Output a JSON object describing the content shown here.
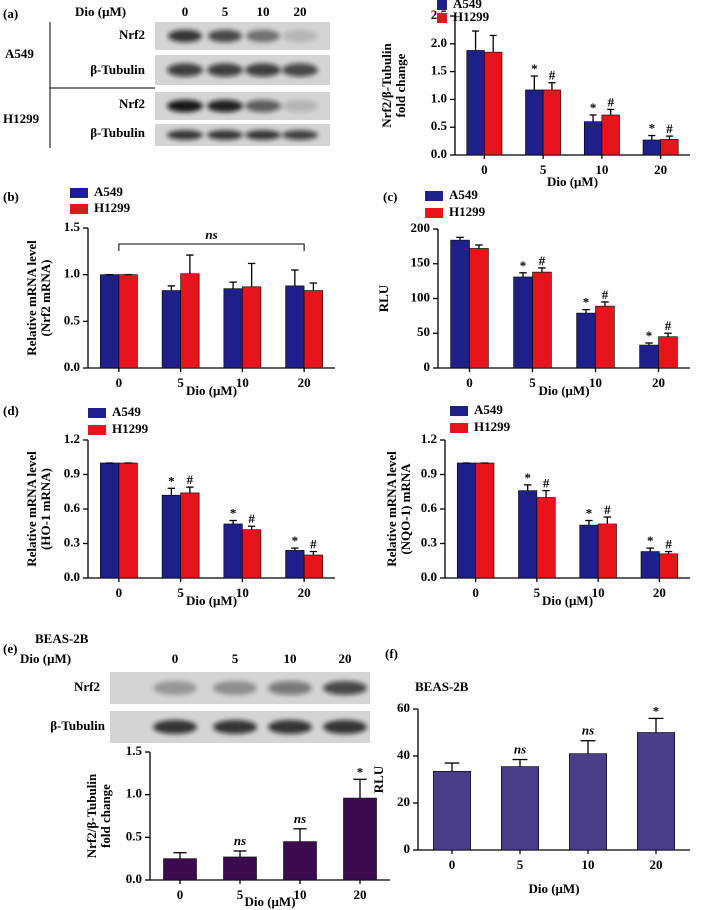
{
  "panel_labels": [
    "(a)",
    "(b)",
    "(c)",
    "(d)",
    "(e)",
    "(f)"
  ],
  "blot_a": {
    "header_label": "Dio (μM)",
    "lanes": [
      "0",
      "5",
      "10",
      "20"
    ],
    "groups": [
      {
        "name": "A549",
        "rows": [
          "Nrf2",
          "β-Tubulin"
        ]
      },
      {
        "name": "H1299",
        "rows": [
          "Nrf2",
          "β-Tubulin"
        ]
      }
    ]
  },
  "blot_e": {
    "title": "BEAS-2B",
    "header_label": "Dio (μM)",
    "lanes": [
      "0",
      "5",
      "10",
      "20"
    ],
    "rows": [
      "Nrf2",
      "β-Tubulin"
    ]
  },
  "chart_data": [
    {
      "type": "bar",
      "ylabel": [
        "Nrf2/β-Tubulin",
        "fold change"
      ],
      "xlabel": "Dio (μM)",
      "categories": [
        "0",
        "5",
        "10",
        "20"
      ],
      "ylim": [
        0,
        2.5
      ],
      "yticks": [
        {
          "value": 0,
          "label": "0.0"
        },
        0.5,
        {
          "value": 1,
          "label": "1.0"
        },
        1.5,
        {
          "value": 2,
          "label": "2.0"
        },
        2.5
      ],
      "series": [
        {
          "name": "A549",
          "color": "#1f1f8a",
          "values": [
            1.88,
            1.17,
            0.6,
            0.27
          ],
          "errors": [
            0.35,
            0.25,
            0.12,
            0.08
          ],
          "marks": [
            null,
            "*",
            "*",
            "*"
          ]
        },
        {
          "name": "H1299",
          "color": "#e8141b",
          "values": [
            1.85,
            1.17,
            0.72,
            0.28
          ],
          "errors": [
            0.3,
            0.13,
            0.1,
            0.06
          ],
          "marks": [
            null,
            "#",
            "#",
            "#"
          ]
        }
      ]
    },
    {
      "type": "bar",
      "ylabel": [
        "Relative mRNA level",
        "(Nrf2 mRNA)"
      ],
      "xlabel": "Dio (μM)",
      "categories": [
        "0",
        "5",
        "10",
        "20"
      ],
      "ylim": [
        0,
        1.5
      ],
      "yticks": [
        {
          "value": 0,
          "label": "0.0"
        },
        0.5,
        {
          "value": 1,
          "label": "1.0"
        },
        1.5
      ],
      "bracket": {
        "label": "ns",
        "from": "0",
        "to": "20"
      },
      "series": [
        {
          "name": "A549",
          "color": "#1f1f8a",
          "values": [
            1,
            0.83,
            0.85,
            0.88
          ],
          "errors": [
            0,
            0.05,
            0.07,
            0.17
          ]
        },
        {
          "name": "H1299",
          "color": "#e8141b",
          "values": [
            1,
            1.01,
            0.87,
            0.83
          ],
          "errors": [
            0,
            0.2,
            0.25,
            0.08
          ]
        }
      ]
    },
    {
      "type": "bar",
      "ylabel": [
        "RLU"
      ],
      "xlabel": "Dio (μM)",
      "categories": [
        "0",
        "5",
        "10",
        "20"
      ],
      "ylim": [
        0,
        200
      ],
      "yticks": [
        0,
        50,
        100,
        150,
        200
      ],
      "series": [
        {
          "name": "A549",
          "color": "#1f1f8a",
          "values": [
            184,
            131,
            79,
            33
          ],
          "errors": [
            4,
            6,
            5,
            3
          ],
          "marks": [
            null,
            "*",
            "*",
            "*"
          ]
        },
        {
          "name": "H1299",
          "color": "#e8141b",
          "values": [
            172,
            138,
            89,
            45
          ],
          "errors": [
            5,
            6,
            6,
            5
          ],
          "marks": [
            null,
            "#",
            "#",
            "#"
          ]
        }
      ]
    },
    {
      "type": "bar",
      "ylabel": [
        "Relative mRNA level",
        "(HO-1 mRNA)"
      ],
      "xlabel": "Dio (μM)",
      "categories": [
        "0",
        "5",
        "10",
        "20"
      ],
      "ylim": [
        0,
        1.2
      ],
      "yticks": [
        {
          "value": 0,
          "label": "0.0"
        },
        0.3,
        0.6,
        0.9,
        1.2
      ],
      "series": [
        {
          "name": "A549",
          "color": "#1f1f8a",
          "values": [
            1,
            0.72,
            0.47,
            0.24
          ],
          "errors": [
            0,
            0.06,
            0.03,
            0.02
          ],
          "marks": [
            null,
            "*",
            "*",
            "*"
          ]
        },
        {
          "name": "H1299",
          "color": "#e8141b",
          "values": [
            1,
            0.74,
            0.42,
            0.2
          ],
          "errors": [
            0,
            0.05,
            0.03,
            0.03
          ],
          "marks": [
            null,
            "#",
            "#",
            "#"
          ]
        }
      ]
    },
    {
      "type": "bar",
      "ylabel": [
        "Relative mRNA level",
        "(NQO-1) mRNA"
      ],
      "xlabel": "Dio (μM)",
      "categories": [
        "0",
        "5",
        "10",
        "20"
      ],
      "ylim": [
        0,
        1.2
      ],
      "yticks": [
        {
          "value": 0,
          "label": "0.0"
        },
        0.3,
        0.6,
        0.9,
        1.2
      ],
      "series": [
        {
          "name": "A549",
          "color": "#1f1f8a",
          "values": [
            1,
            0.76,
            0.46,
            0.23
          ],
          "errors": [
            0,
            0.05,
            0.04,
            0.03
          ],
          "marks": [
            null,
            "*",
            "*",
            "*"
          ]
        },
        {
          "name": "H1299",
          "color": "#e8141b",
          "values": [
            1,
            0.7,
            0.47,
            0.21
          ],
          "errors": [
            0,
            0.06,
            0.06,
            0.02
          ],
          "marks": [
            null,
            "#",
            "#",
            "#"
          ]
        }
      ]
    },
    {
      "type": "bar",
      "ylabel": [
        "Nrf2/β-Tubulin",
        "fold change"
      ],
      "xlabel": "Dio (μM)",
      "categories": [
        "0",
        "5",
        "10",
        "20"
      ],
      "ylim": [
        0,
        1.5
      ],
      "yticks": [
        {
          "value": 0,
          "label": "0.0"
        },
        0.5,
        {
          "value": 1,
          "label": "1.0"
        },
        1.5
      ],
      "color": "#3b0a4f",
      "values": [
        0.25,
        0.27,
        0.45,
        0.96
      ],
      "errors": [
        0.07,
        0.07,
        0.15,
        0.22
      ],
      "marks": [
        null,
        "ns",
        "ns",
        "*"
      ]
    },
    {
      "type": "bar",
      "title": "BEAS-2B",
      "ylabel": [
        "RLU"
      ],
      "xlabel": "Dio (μM)",
      "categories": [
        "0",
        "5",
        "10",
        "20"
      ],
      "ylim": [
        0,
        60
      ],
      "yticks": [
        0,
        20,
        40,
        60
      ],
      "color": "#4a3d8a",
      "values": [
        33.5,
        35.5,
        41,
        50
      ],
      "errors": [
        3.5,
        3,
        5.5,
        6
      ],
      "marks": [
        null,
        "ns",
        "ns",
        "*"
      ]
    }
  ]
}
